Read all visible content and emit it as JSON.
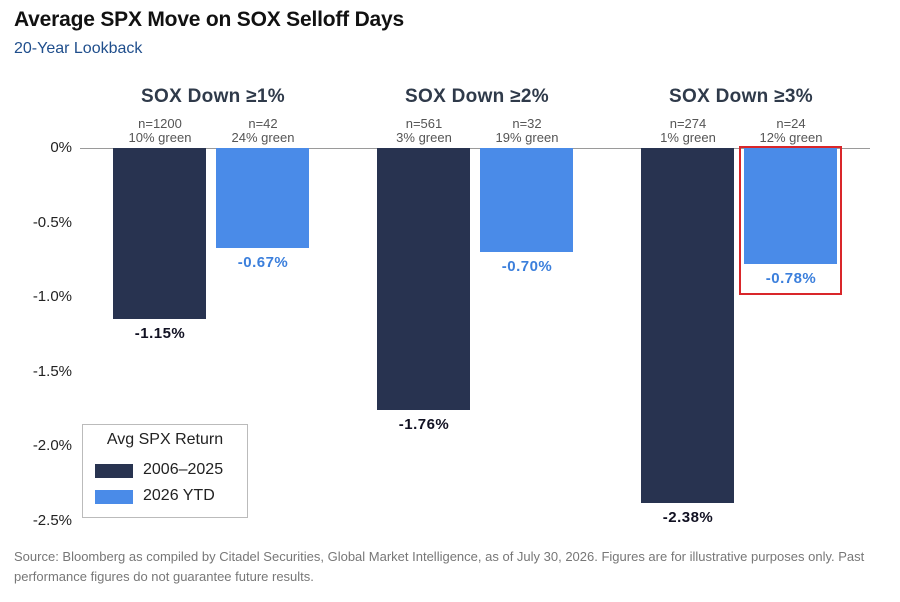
{
  "chart_data": {
    "type": "bar",
    "title": "Average SPX Move on SOX Selloff Days",
    "subtitle": "20-Year Lookback",
    "ylim": [
      -2.5,
      0
    ],
    "yticks": [
      "0%",
      "-0.5%",
      "-1.0%",
      "-1.5%",
      "-2.0%",
      "-2.5%"
    ],
    "ytick_values": [
      0,
      -0.5,
      -1.0,
      -1.5,
      -2.0,
      -2.5
    ],
    "groups": [
      {
        "title": "SOX Down ≥1%",
        "bars": [
          {
            "series": "2006–2025",
            "value": -1.15,
            "label": "-1.15%",
            "n": "n=1200",
            "green": "10% green"
          },
          {
            "series": "2026 YTD",
            "value": -0.67,
            "label": "-0.67%",
            "n": "n=42",
            "green": "24% green"
          }
        ]
      },
      {
        "title": "SOX Down ≥2%",
        "bars": [
          {
            "series": "2006–2025",
            "value": -1.76,
            "label": "-1.76%",
            "n": "n=561",
            "green": "3% green"
          },
          {
            "series": "2026 YTD",
            "value": -0.7,
            "label": "-0.70%",
            "n": "n=32",
            "green": "19% green"
          }
        ]
      },
      {
        "title": "SOX Down ≥3%",
        "bars": [
          {
            "series": "2006–2025",
            "value": -2.38,
            "label": "-2.38%",
            "n": "n=274",
            "green": "1% green"
          },
          {
            "series": "2026 YTD",
            "value": -0.78,
            "label": "-0.78%",
            "n": "n=24",
            "green": "12% green",
            "highlighted": true
          }
        ]
      }
    ],
    "legend": {
      "title": "Avg SPX Return",
      "placement": "bottom-left",
      "entries": [
        {
          "name": "2006–2025",
          "color": "#283350"
        },
        {
          "name": "2026 YTD",
          "color": "#4a8be8"
        }
      ]
    },
    "grid": false,
    "highlight_color": "#d9262a"
  },
  "source": "Source: Bloomberg as compiled by Citadel Securities, Global Market Intelligence, as of July 30, 2026. Figures are for illustrative purposes only. Past performance figures do not guarantee future results."
}
